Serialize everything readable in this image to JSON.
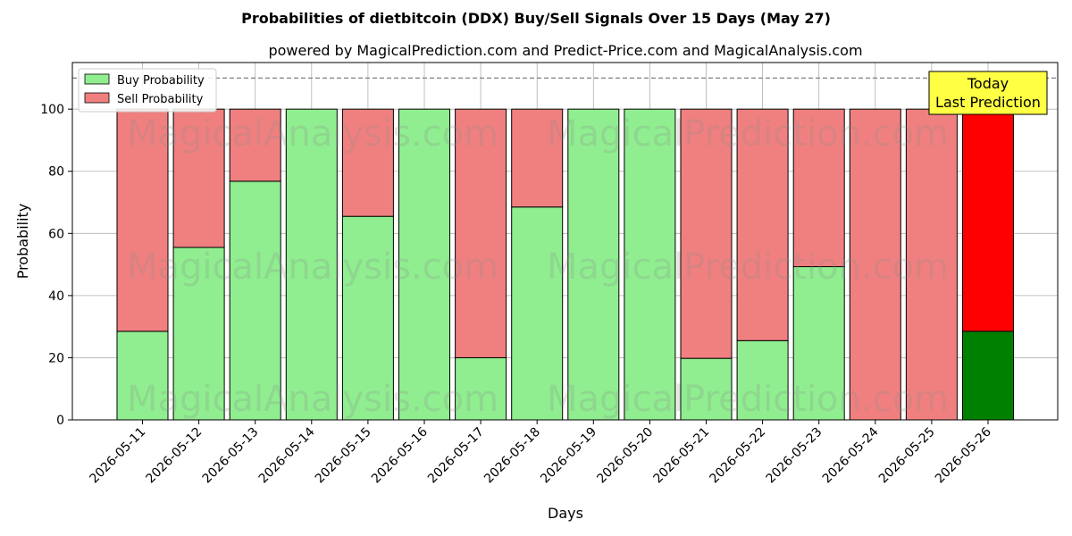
{
  "chart_data": {
    "type": "bar",
    "title": "Probabilities of dietbitcoin (DDX) Buy/Sell Signals Over 15 Days (May 27)",
    "subtitle": "powered by MagicalPrediction.com and Predict-Price.com and MagicalAnalysis.com",
    "xlabel": "Days",
    "ylabel": "Probability",
    "ylim": [
      0,
      115
    ],
    "yticks": [
      0,
      20,
      40,
      60,
      80,
      100
    ],
    "threshold_line": 110,
    "grid": true,
    "stacked": true,
    "legend_position": "top-left",
    "categories": [
      "2026-05-11",
      "2026-05-12",
      "2026-05-13",
      "2026-05-14",
      "2026-05-15",
      "2026-05-16",
      "2026-05-17",
      "2026-05-18",
      "2026-05-19",
      "2026-05-20",
      "2026-05-21",
      "2026-05-22",
      "2026-05-23",
      "2026-05-24",
      "2026-05-25",
      "2026-05-26"
    ],
    "series": [
      {
        "name": "Buy Probability",
        "color": "#90ee90",
        "highlight_color": "#008000",
        "values": [
          28.5,
          55.5,
          76.8,
          100,
          65.5,
          100,
          20,
          68.5,
          100,
          100,
          19.8,
          25.5,
          49.3,
          0,
          0,
          28.5
        ]
      },
      {
        "name": "Sell Probability",
        "color": "#f08080",
        "highlight_color": "#ff0000",
        "values": [
          71.5,
          44.5,
          23.2,
          0,
          34.5,
          0,
          80,
          31.5,
          0,
          0,
          80.2,
          74.5,
          50.7,
          100,
          100,
          71.5
        ]
      }
    ],
    "highlight_index": 15,
    "annotation": {
      "line1": "Today",
      "line2": "Last Prediction",
      "bg": "#ffff44"
    },
    "watermarks": [
      "MagicalAnalysis.com",
      "MagicalPrediction.com"
    ]
  }
}
